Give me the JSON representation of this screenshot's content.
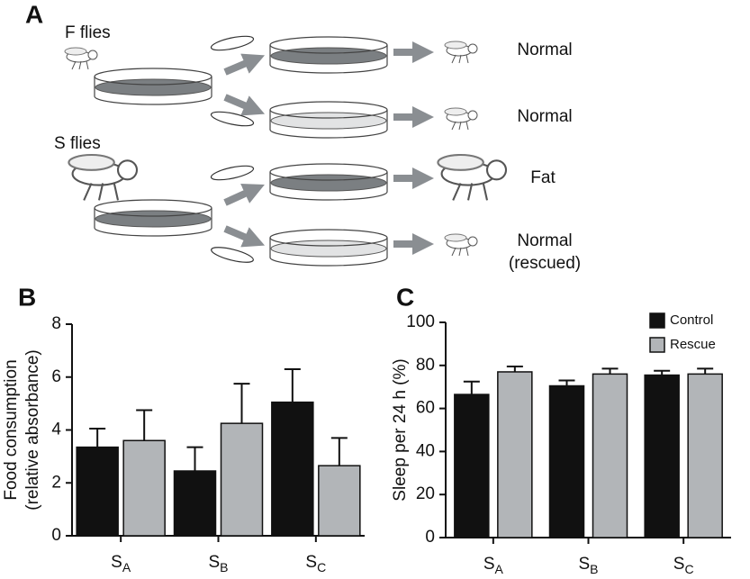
{
  "panel_a": {
    "label": "A",
    "f_group": "F flies",
    "s_group": "S flies",
    "outcomes": [
      "Normal",
      "Normal",
      "Fat",
      "Normal",
      "(rescued)"
    ]
  },
  "chart_data": [
    {
      "type": "bar",
      "panel_label": "B",
      "ylabel": [
        "Food consumption",
        "(relative absorbance)"
      ],
      "categories": [
        "SA",
        "SB",
        "SC"
      ],
      "series": [
        {
          "color": "#111111",
          "values": [
            3.35,
            2.45,
            5.05
          ],
          "errors": [
            0.7,
            0.9,
            1.25
          ]
        },
        {
          "color": "#b2b5b8",
          "values": [
            3.6,
            4.25,
            2.65
          ],
          "errors": [
            1.15,
            1.5,
            1.05
          ]
        }
      ],
      "ylim": [
        0,
        8
      ],
      "yticks": [
        0,
        2,
        4,
        6,
        8
      ]
    },
    {
      "type": "bar",
      "panel_label": "C",
      "ylabel": "Sleep per 24 h (%)",
      "categories": [
        "SA",
        "SB",
        "SC"
      ],
      "legend": "top-right",
      "series": [
        {
          "name": "Control",
          "color": "#111111",
          "values": [
            66.5,
            70.5,
            75.5
          ],
          "errors": [
            6,
            2.5,
            2
          ]
        },
        {
          "name": "Rescue",
          "color": "#b2b5b8",
          "values": [
            77,
            76,
            76
          ],
          "errors": [
            2.5,
            2.5,
            2.5
          ]
        }
      ],
      "ylim": [
        0,
        100
      ],
      "yticks": [
        0,
        20,
        40,
        60,
        80,
        100
      ]
    }
  ]
}
